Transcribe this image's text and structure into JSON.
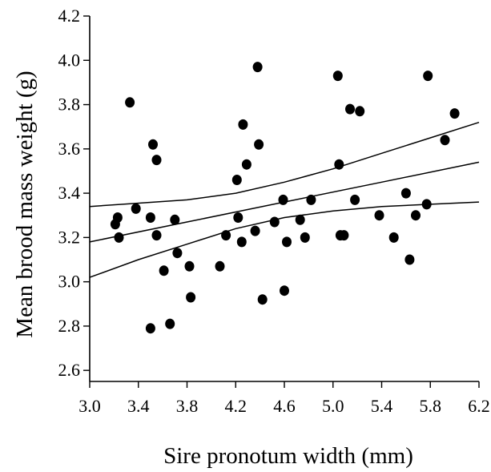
{
  "chart_data": {
    "type": "scatter",
    "title": "",
    "xlabel": "Sire pronotum width (mm)",
    "ylabel": "Mean brood mass weight (g)",
    "xlim": [
      3.0,
      6.2
    ],
    "ylim": [
      2.55,
      4.2
    ],
    "x_ticks": [
      3.0,
      3.4,
      3.8,
      4.2,
      4.6,
      5.0,
      5.4,
      5.8,
      6.2
    ],
    "x_tick_labels": [
      "3.0",
      "3.4",
      "3.8",
      "4.2",
      "4.6",
      "5.0",
      "5.4",
      "5.8",
      "6.2"
    ],
    "y_ticks": [
      2.6,
      2.8,
      3.0,
      3.2,
      3.4,
      3.6,
      3.8,
      4.0,
      4.2
    ],
    "y_tick_labels": [
      "2.6",
      "2.8",
      "3.0",
      "3.2",
      "3.4",
      "3.6",
      "3.8",
      "4.0",
      "4.2"
    ],
    "grid": false,
    "points": [
      {
        "x": 3.21,
        "y": 3.26
      },
      {
        "x": 3.23,
        "y": 3.29
      },
      {
        "x": 3.24,
        "y": 3.2
      },
      {
        "x": 3.33,
        "y": 3.81
      },
      {
        "x": 3.38,
        "y": 3.33
      },
      {
        "x": 3.5,
        "y": 3.29
      },
      {
        "x": 3.5,
        "y": 2.79
      },
      {
        "x": 3.52,
        "y": 3.62
      },
      {
        "x": 3.55,
        "y": 3.55
      },
      {
        "x": 3.55,
        "y": 3.21
      },
      {
        "x": 3.61,
        "y": 3.05
      },
      {
        "x": 3.66,
        "y": 2.81
      },
      {
        "x": 3.7,
        "y": 3.28
      },
      {
        "x": 3.72,
        "y": 3.13
      },
      {
        "x": 3.82,
        "y": 3.07
      },
      {
        "x": 3.83,
        "y": 2.93
      },
      {
        "x": 4.07,
        "y": 3.07
      },
      {
        "x": 4.12,
        "y": 3.21
      },
      {
        "x": 4.21,
        "y": 3.46
      },
      {
        "x": 4.22,
        "y": 3.29
      },
      {
        "x": 4.25,
        "y": 3.18
      },
      {
        "x": 4.26,
        "y": 3.71
      },
      {
        "x": 4.29,
        "y": 3.53
      },
      {
        "x": 4.36,
        "y": 3.23
      },
      {
        "x": 4.38,
        "y": 3.97
      },
      {
        "x": 4.39,
        "y": 3.62
      },
      {
        "x": 4.42,
        "y": 2.92
      },
      {
        "x": 4.52,
        "y": 3.27
      },
      {
        "x": 4.59,
        "y": 3.37
      },
      {
        "x": 4.6,
        "y": 2.96
      },
      {
        "x": 4.62,
        "y": 3.18
      },
      {
        "x": 4.73,
        "y": 3.28
      },
      {
        "x": 4.77,
        "y": 3.2
      },
      {
        "x": 4.82,
        "y": 3.37
      },
      {
        "x": 5.04,
        "y": 3.93
      },
      {
        "x": 5.05,
        "y": 3.53
      },
      {
        "x": 5.06,
        "y": 3.21
      },
      {
        "x": 5.09,
        "y": 3.21
      },
      {
        "x": 5.14,
        "y": 3.78
      },
      {
        "x": 5.18,
        "y": 3.37
      },
      {
        "x": 5.22,
        "y": 3.77
      },
      {
        "x": 5.38,
        "y": 3.3
      },
      {
        "x": 5.5,
        "y": 3.2
      },
      {
        "x": 5.6,
        "y": 3.4
      },
      {
        "x": 5.63,
        "y": 3.1
      },
      {
        "x": 5.68,
        "y": 3.3
      },
      {
        "x": 5.77,
        "y": 3.35
      },
      {
        "x": 5.78,
        "y": 3.93
      },
      {
        "x": 5.92,
        "y": 3.64
      },
      {
        "x": 6.0,
        "y": 3.76
      }
    ],
    "lines": [
      {
        "role": "regression",
        "x": [
          3.0,
          3.8,
          4.6,
          5.4,
          6.2
        ],
        "y": [
          3.18,
          3.27,
          3.36,
          3.45,
          3.54
        ]
      },
      {
        "role": "upper-ci",
        "x": [
          3.0,
          3.8,
          4.2,
          4.6,
          5.0,
          5.4,
          5.8,
          6.2
        ],
        "y": [
          3.34,
          3.37,
          3.4,
          3.45,
          3.51,
          3.58,
          3.65,
          3.72
        ]
      },
      {
        "role": "lower-ci",
        "x": [
          3.0,
          3.4,
          3.8,
          4.2,
          4.6,
          5.0,
          5.4,
          5.8,
          6.2
        ],
        "y": [
          3.02,
          3.1,
          3.17,
          3.24,
          3.29,
          3.32,
          3.34,
          3.35,
          3.36
        ]
      }
    ]
  }
}
